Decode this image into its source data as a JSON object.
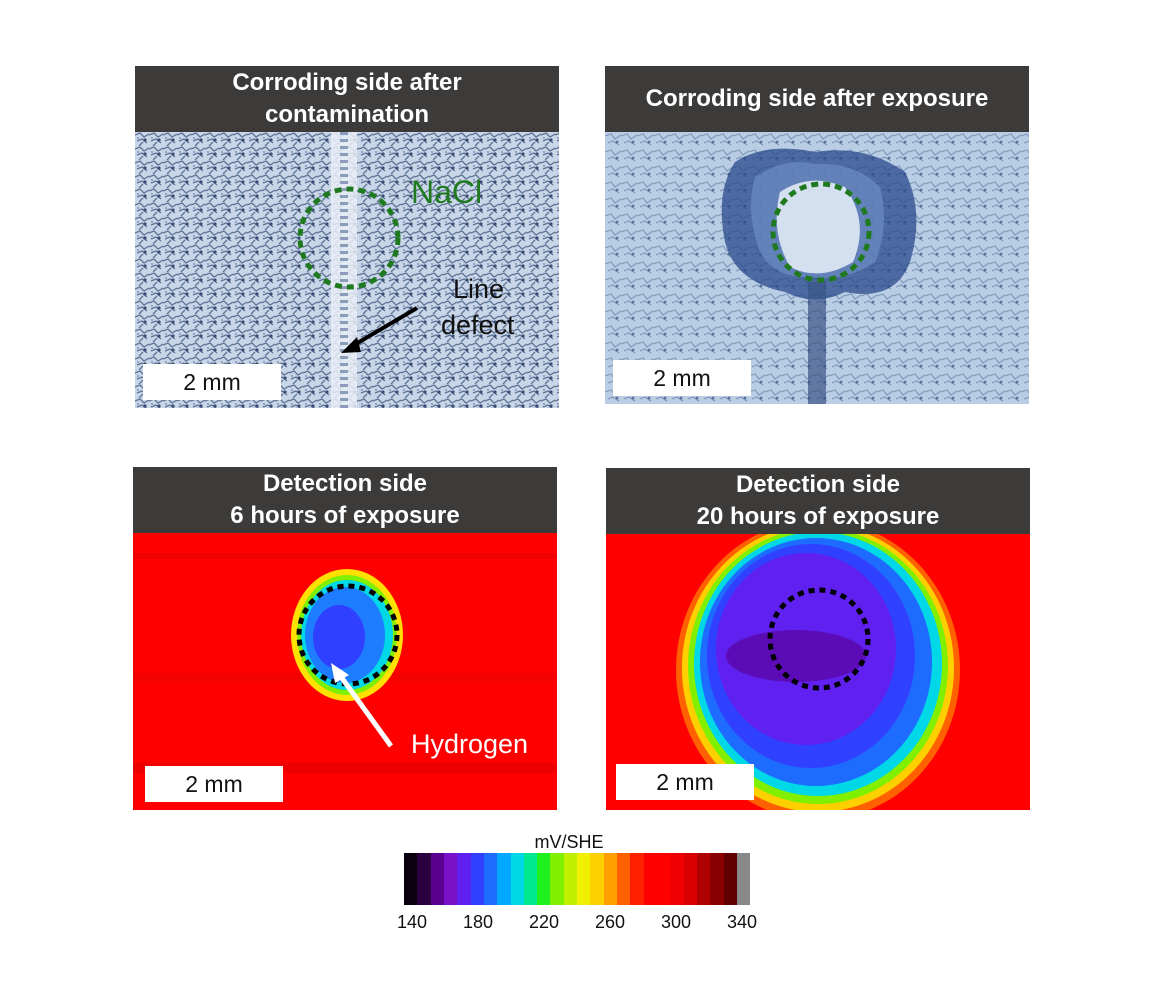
{
  "panels": [
    {
      "id": "p1",
      "title_lines": [
        "Corroding side after",
        "contamination"
      ],
      "scale": "2 mm"
    },
    {
      "id": "p2",
      "title_lines": [
        "Corroding side after exposure"
      ],
      "scale": "2 mm"
    },
    {
      "id": "p3",
      "title_lines": [
        "Detection side",
        "6 hours of exposure"
      ],
      "scale": "2 mm"
    },
    {
      "id": "p4",
      "title_lines": [
        "Detection side",
        "20 hours of exposure"
      ],
      "scale": "2 mm"
    }
  ],
  "annotations": {
    "nacl": "NaCl",
    "line_defect_1": "Line",
    "line_defect_2": "defect",
    "hydrogen": "Hydrogen"
  },
  "colors": {
    "header_bg": "#3d3b3a",
    "nacl_green": "#1f7a1f",
    "map_red": "#ff0000"
  },
  "colorbar": {
    "unit": "mV/SHE",
    "ticks": [
      "140",
      "180",
      "220",
      "260",
      "300",
      "340"
    ],
    "colors": [
      "#0a0010",
      "#2a0040",
      "#5a0090",
      "#7a10c8",
      "#6020f0",
      "#3040ff",
      "#1e6cff",
      "#00a8ff",
      "#00d8e8",
      "#00e890",
      "#20f020",
      "#80f000",
      "#c0f000",
      "#f0f000",
      "#ffd000",
      "#ffa000",
      "#ff6000",
      "#ff2000",
      "#ff0000",
      "#ff0000",
      "#f00000",
      "#d80000",
      "#b00000",
      "#880000",
      "#600000",
      "#888888"
    ]
  }
}
